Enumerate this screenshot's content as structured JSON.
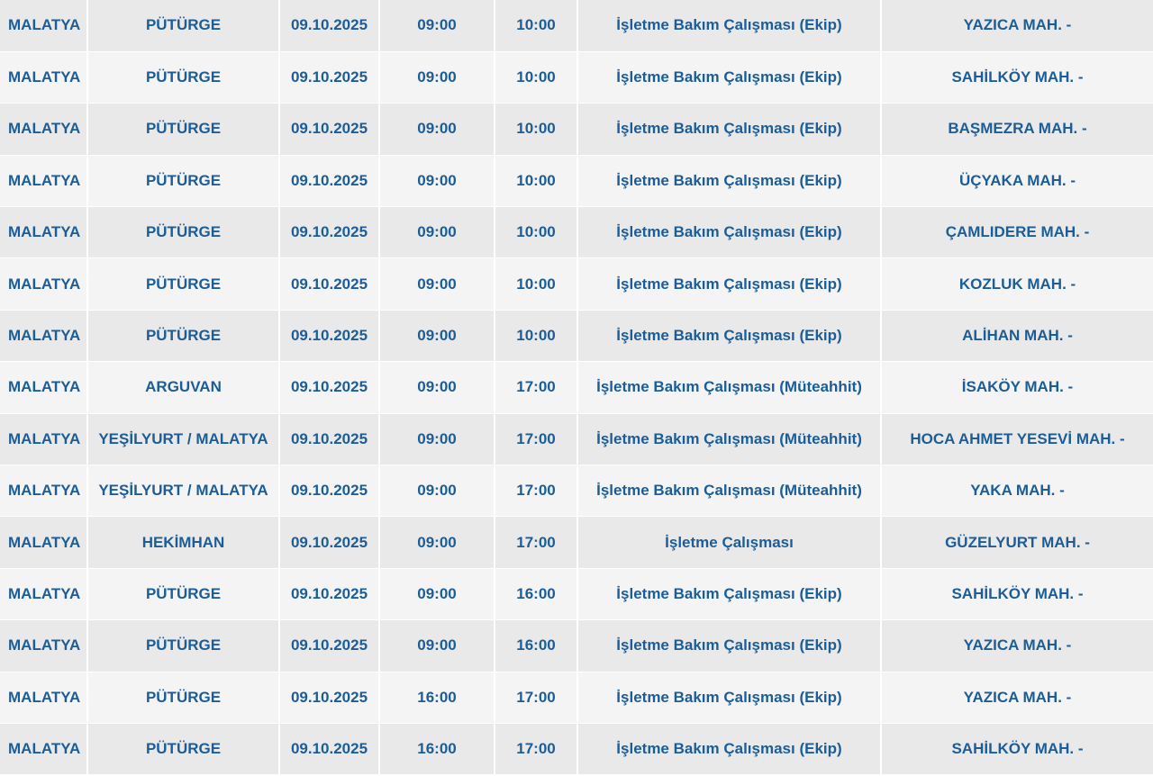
{
  "colors": {
    "text": "#1c5d97",
    "row_dark": "#e9e9e9",
    "row_light": "#f4f4f4"
  },
  "rows": [
    [
      "MALATYA",
      "PÜTÜRGE",
      "09.10.2025",
      "09:00",
      "10:00",
      "İşletme Bakım Çalışması (Ekip)",
      "YAZICA MAH. -"
    ],
    [
      "MALATYA",
      "PÜTÜRGE",
      "09.10.2025",
      "09:00",
      "10:00",
      "İşletme Bakım Çalışması (Ekip)",
      "SAHİLKÖY MAH. -"
    ],
    [
      "MALATYA",
      "PÜTÜRGE",
      "09.10.2025",
      "09:00",
      "10:00",
      "İşletme Bakım Çalışması (Ekip)",
      "BAŞMEZRA MAH. -"
    ],
    [
      "MALATYA",
      "PÜTÜRGE",
      "09.10.2025",
      "09:00",
      "10:00",
      "İşletme Bakım Çalışması (Ekip)",
      "ÜÇYAKA MAH. -"
    ],
    [
      "MALATYA",
      "PÜTÜRGE",
      "09.10.2025",
      "09:00",
      "10:00",
      "İşletme Bakım Çalışması (Ekip)",
      "ÇAMLIDERE MAH. -"
    ],
    [
      "MALATYA",
      "PÜTÜRGE",
      "09.10.2025",
      "09:00",
      "10:00",
      "İşletme Bakım Çalışması (Ekip)",
      "KOZLUK MAH. -"
    ],
    [
      "MALATYA",
      "PÜTÜRGE",
      "09.10.2025",
      "09:00",
      "10:00",
      "İşletme Bakım Çalışması (Ekip)",
      "ALİHAN MAH. -"
    ],
    [
      "MALATYA",
      "ARGUVAN",
      "09.10.2025",
      "09:00",
      "17:00",
      "İşletme Bakım Çalışması (Müteahhit)",
      "İSAKÖY MAH. -"
    ],
    [
      "MALATYA",
      "YEŞİLYURT / MALATYA",
      "09.10.2025",
      "09:00",
      "17:00",
      "İşletme Bakım Çalışması (Müteahhit)",
      "HOCA AHMET YESEVİ MAH. -"
    ],
    [
      "MALATYA",
      "YEŞİLYURT / MALATYA",
      "09.10.2025",
      "09:00",
      "17:00",
      "İşletme Bakım Çalışması (Müteahhit)",
      "YAKA MAH. -"
    ],
    [
      "MALATYA",
      "HEKİMHAN",
      "09.10.2025",
      "09:00",
      "17:00",
      "İşletme Çalışması",
      "GÜZELYURT MAH. -"
    ],
    [
      "MALATYA",
      "PÜTÜRGE",
      "09.10.2025",
      "09:00",
      "16:00",
      "İşletme Bakım Çalışması (Ekip)",
      "SAHİLKÖY MAH. -"
    ],
    [
      "MALATYA",
      "PÜTÜRGE",
      "09.10.2025",
      "09:00",
      "16:00",
      "İşletme Bakım Çalışması (Ekip)",
      "YAZICA MAH. -"
    ],
    [
      "MALATYA",
      "PÜTÜRGE",
      "09.10.2025",
      "16:00",
      "17:00",
      "İşletme Bakım Çalışması (Ekip)",
      "YAZICA MAH. -"
    ],
    [
      "MALATYA",
      "PÜTÜRGE",
      "09.10.2025",
      "16:00",
      "17:00",
      "İşletme Bakım Çalışması (Ekip)",
      "SAHİLKÖY MAH. -"
    ]
  ]
}
